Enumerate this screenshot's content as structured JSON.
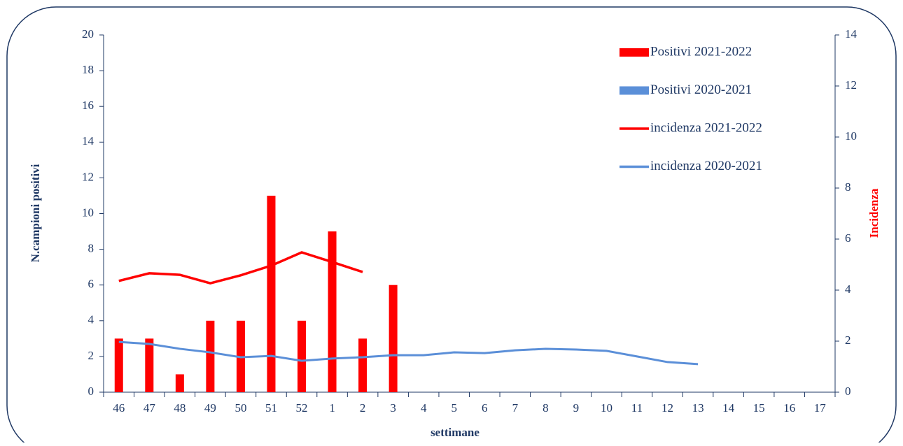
{
  "chart_data": {
    "type": "bar",
    "categories": [
      "46",
      "47",
      "48",
      "49",
      "50",
      "51",
      "52",
      "1",
      "2",
      "3",
      "4",
      "5",
      "6",
      "7",
      "8",
      "9",
      "10",
      "11",
      "12",
      "13",
      "14",
      "15",
      "16",
      "17"
    ],
    "series": [
      {
        "name": "Positivi 2021-2022",
        "type": "bar",
        "color": "#ff0000",
        "values": [
          3,
          3,
          1,
          4,
          4,
          11,
          4,
          9,
          3,
          6,
          null,
          null,
          null,
          null,
          null,
          null,
          null,
          null,
          null,
          null,
          null,
          null,
          null,
          null
        ]
      },
      {
        "name": "Positivi 2020-2021",
        "type": "bar",
        "color": "#5b8fd8",
        "values": [
          null,
          null,
          null,
          null,
          null,
          null,
          null,
          null,
          null,
          null,
          null,
          null,
          null,
          null,
          null,
          null,
          null,
          null,
          null,
          null,
          null,
          null,
          null,
          null
        ]
      },
      {
        "name": "incidenza 2021-2022",
        "type": "line",
        "axis": "y2",
        "color": "#ff0000",
        "values": [
          4.36,
          4.66,
          4.6,
          4.27,
          4.58,
          4.96,
          5.48,
          5.1,
          4.71,
          null,
          null,
          null,
          null,
          null,
          null,
          null,
          null,
          null,
          null,
          null,
          null,
          null,
          null,
          null
        ]
      },
      {
        "name": "incidenza 2020-2021",
        "type": "line",
        "axis": "y2",
        "color": "#5b8fd8",
        "values": [
          1.97,
          1.89,
          1.7,
          1.56,
          1.37,
          1.42,
          1.23,
          1.32,
          1.37,
          1.45,
          1.45,
          1.56,
          1.53,
          1.64,
          1.7,
          1.67,
          1.62,
          1.4,
          1.18,
          1.1,
          null,
          null,
          null,
          null
        ]
      }
    ],
    "ylabel": "N.campioni positivi",
    "y2label": "Incidenza",
    "xlabel": "settimane",
    "ylim": [
      0,
      20
    ],
    "yticks": [
      0,
      2,
      4,
      6,
      8,
      10,
      12,
      14,
      16,
      18,
      20
    ],
    "y2lim": [
      0,
      14
    ],
    "y2ticks": [
      0,
      2,
      4,
      6,
      8,
      10,
      12,
      14
    ],
    "legend": "upper right"
  }
}
